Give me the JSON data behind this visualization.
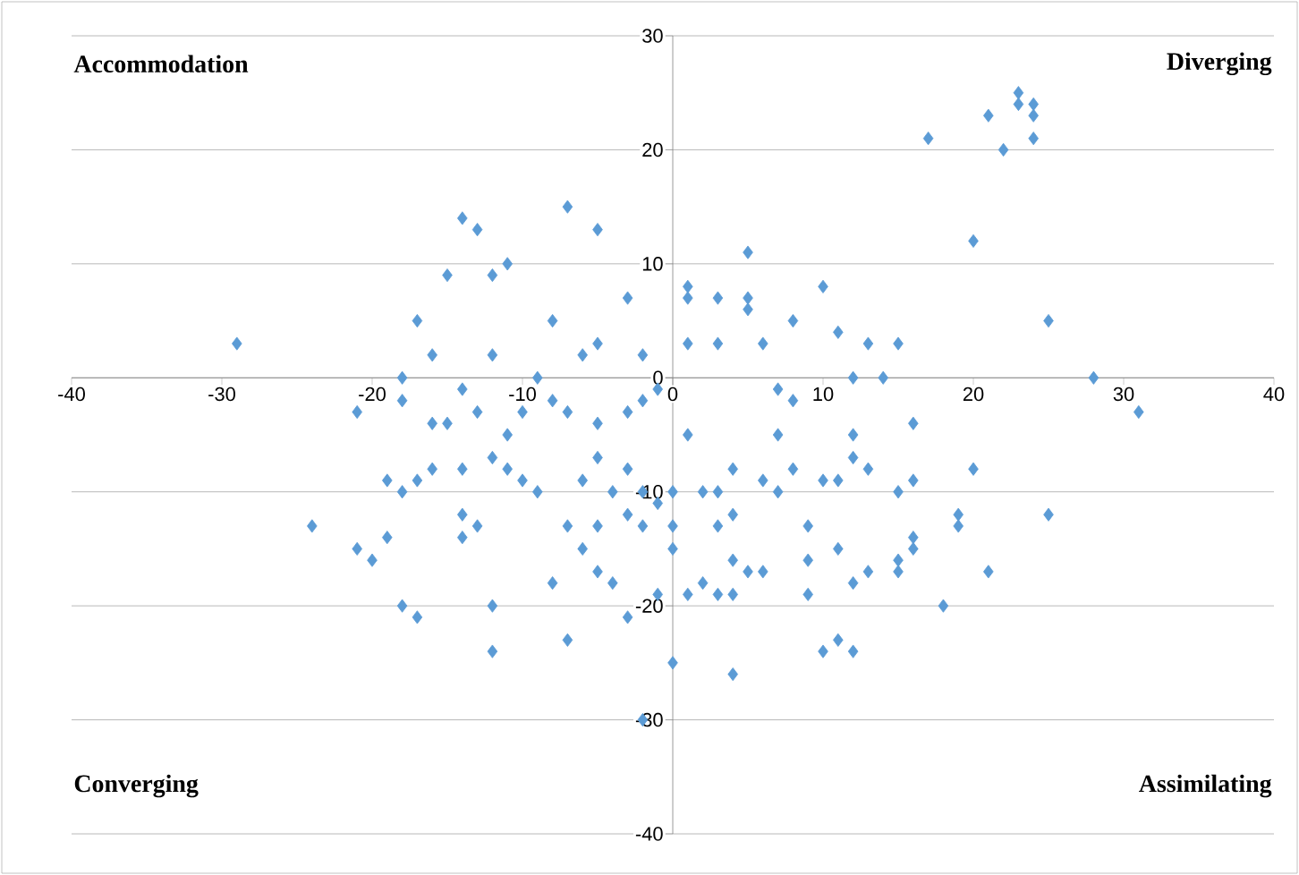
{
  "chart_data": {
    "type": "scatter",
    "marker": "diamond",
    "grid": "y",
    "xlim": [
      -40,
      40
    ],
    "ylim": [
      -40,
      30
    ],
    "xticks": [
      -40,
      -30,
      -20,
      -10,
      0,
      10,
      20,
      30,
      40
    ],
    "yticks": [
      -40,
      -30,
      -20,
      -10,
      0,
      10,
      20,
      30
    ],
    "annotations": [
      "Accommodation",
      "Diverging",
      "Converging",
      "Assimilating"
    ],
    "series": [
      {
        "color": "#5b9bd5",
        "x": [
          -29,
          -14,
          -13,
          -7,
          -5,
          -15,
          -11,
          -12,
          -17,
          -8,
          -3,
          -16,
          -12,
          -6,
          -5,
          -2,
          -9,
          -18,
          -21,
          -1,
          -2,
          -14,
          -10,
          -7,
          -5,
          -3,
          -15,
          -13,
          -18,
          -16,
          -8,
          1,
          1,
          3,
          5,
          5,
          5,
          10,
          8,
          11,
          13,
          15,
          1,
          3,
          6,
          12,
          14,
          16,
          20,
          17,
          21,
          22,
          23,
          23,
          24,
          24,
          24,
          25,
          28,
          31,
          7,
          8,
          1,
          4,
          7,
          8,
          10,
          11,
          12,
          12,
          13,
          15,
          16,
          20,
          19,
          19,
          25,
          21,
          18,
          2,
          3,
          3,
          4,
          6,
          7,
          0,
          0,
          9,
          9,
          11,
          12,
          13,
          15,
          16,
          16,
          15,
          2,
          4,
          5,
          6,
          3,
          4,
          9,
          10,
          11,
          12,
          0,
          4,
          0,
          1,
          -24,
          -21,
          -20,
          -19,
          -19,
          -18,
          -17,
          -16,
          -14,
          -13,
          -14,
          -18,
          -17,
          -12,
          -12,
          -8,
          -6,
          -5,
          -4,
          -3,
          -2,
          -1,
          -11,
          -10,
          -9,
          -6,
          -5,
          -4,
          -3,
          -2,
          -1,
          -7,
          -14,
          -12,
          -11,
          -7,
          -5,
          -3,
          -2
        ],
        "values": [
          3,
          14,
          13,
          15,
          13,
          9,
          10,
          9,
          5,
          5,
          7,
          2,
          2,
          2,
          3,
          2,
          0,
          0,
          -3,
          -1,
          -2,
          -1,
          -3,
          -3,
          -4,
          -3,
          -4,
          -3,
          -2,
          -4,
          -2,
          8,
          7,
          7,
          7,
          6,
          11,
          8,
          5,
          4,
          3,
          3,
          3,
          3,
          3,
          0,
          0,
          -4,
          12,
          21,
          23,
          20,
          25,
          24,
          24,
          23,
          21,
          5,
          0,
          -3,
          -1,
          -2,
          -5,
          -8,
          -5,
          -8,
          -9,
          -9,
          -5,
          -7,
          -8,
          -10,
          -9,
          -8,
          -12,
          -13,
          -12,
          -17,
          -20,
          -10,
          -10,
          -13,
          -12,
          -9,
          -10,
          -10,
          -13,
          -13,
          -16,
          -15,
          -18,
          -17,
          -17,
          -15,
          -14,
          -16,
          -18,
          -16,
          -17,
          -17,
          -19,
          -19,
          -19,
          -24,
          -23,
          -24,
          -25,
          -26,
          -15,
          -19,
          -13,
          -15,
          -16,
          -14,
          -9,
          -10,
          -9,
          -8,
          -12,
          -13,
          -14,
          -20,
          -21,
          -20,
          -24,
          -18,
          -15,
          -17,
          -18,
          -21,
          -30,
          -19,
          -8,
          -9,
          -10,
          -9,
          -7,
          -10,
          -12,
          -13,
          -11,
          -23,
          -8,
          -7,
          -5,
          -13,
          -13,
          -8,
          -10
        ]
      }
    ]
  }
}
